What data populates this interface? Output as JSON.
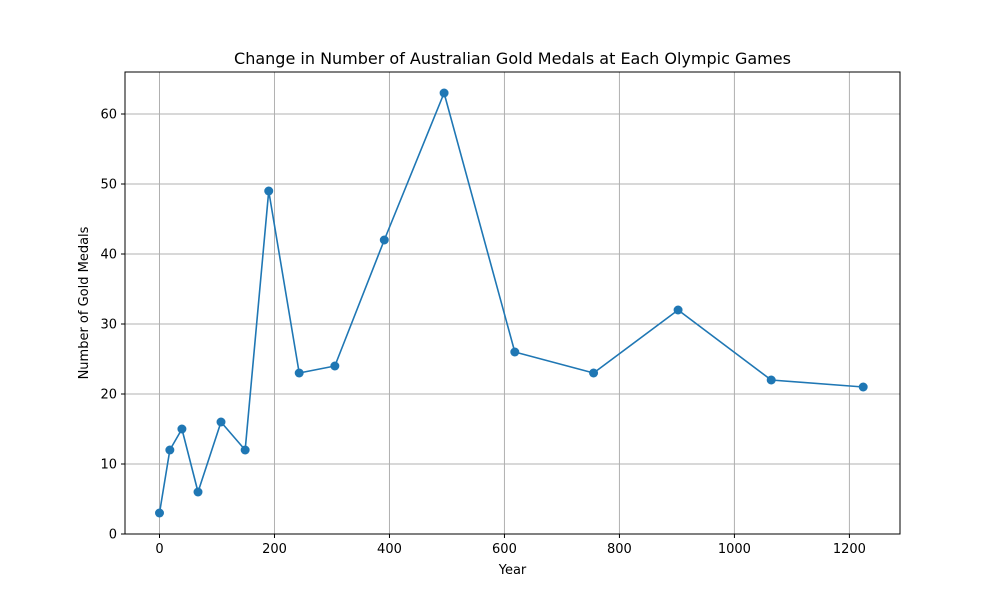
{
  "chart_data": {
    "type": "line",
    "title": "Change in Number of Australian Gold Medals at Each Olympic Games",
    "xlabel": "Year",
    "ylabel": "Number of Gold Medals",
    "xlim": [
      -60,
      1288
    ],
    "ylim": [
      0,
      66
    ],
    "xticks": [
      0,
      200,
      400,
      600,
      800,
      1000,
      1200
    ],
    "yticks": [
      0,
      10,
      20,
      30,
      40,
      50,
      60
    ],
    "grid": true,
    "series": [
      {
        "color": "#1f77b4",
        "marker": "circle",
        "x": [
          0,
          18,
          39,
          67,
          107,
          149,
          190,
          243,
          305,
          391,
          495,
          618,
          755,
          902,
          1064,
          1224
        ],
        "y": [
          3,
          12,
          15,
          6,
          16,
          12,
          49,
          23,
          24,
          42,
          63,
          26,
          23,
          32,
          22,
          21
        ]
      }
    ]
  }
}
